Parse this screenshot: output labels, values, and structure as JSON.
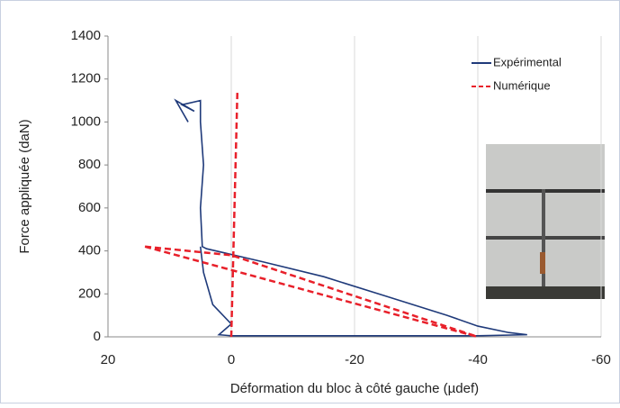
{
  "chart_data": {
    "type": "line",
    "x_label": "Déformation du bloc à côté gauche (µdef)",
    "y_label": "Force appliquée (daN)",
    "xlim": [
      20,
      -60
    ],
    "xticks": [
      20,
      0,
      -20,
      -40,
      -60
    ],
    "ylim": [
      0,
      1400
    ],
    "yticks": [
      0,
      200,
      400,
      600,
      800,
      1000,
      1200,
      1400
    ],
    "grid": "x",
    "legend": "upper right",
    "series": [
      {
        "name": "Expérimental",
        "color": "#1f3a7a",
        "line_style": "solid",
        "x": [
          7,
          9,
          6,
          8,
          5,
          5,
          4.5,
          5,
          4.7,
          4,
          1,
          -5,
          -15,
          -25,
          -35,
          -40,
          -45,
          -48,
          -40,
          -20,
          0,
          2,
          0,
          3,
          4.5,
          5
        ],
        "values": [
          1000,
          1100,
          1050,
          1080,
          1100,
          1000,
          800,
          600,
          420,
          410,
          390,
          350,
          280,
          190,
          100,
          50,
          20,
          10,
          5,
          5,
          5,
          10,
          60,
          150,
          300,
          420
        ]
      },
      {
        "name": "Numérique",
        "color": "#e8202a",
        "line_style": "dashed",
        "x": [
          0,
          -1,
          null,
          14,
          -40,
          null,
          14,
          0,
          -40
        ],
        "values": [
          0,
          1150,
          null,
          420,
          0,
          null,
          420,
          380,
          0
        ]
      }
    ]
  }
}
